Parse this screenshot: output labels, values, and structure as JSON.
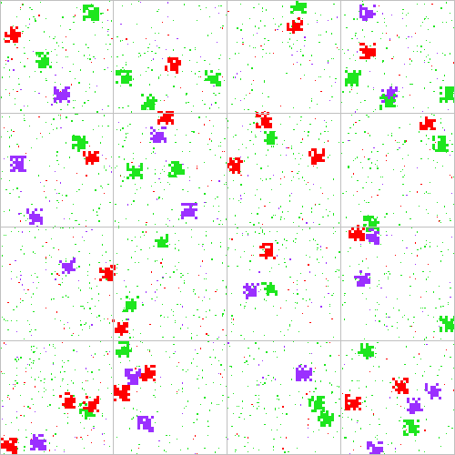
{
  "board": {
    "rows": 4,
    "cols": 4,
    "divider_color": "#c0c0c0",
    "background_color": "#ffffff"
  },
  "cell_types": {
    "green": "#1ee61e",
    "red": "#ff0000",
    "purple": "#9b30ff"
  }
}
